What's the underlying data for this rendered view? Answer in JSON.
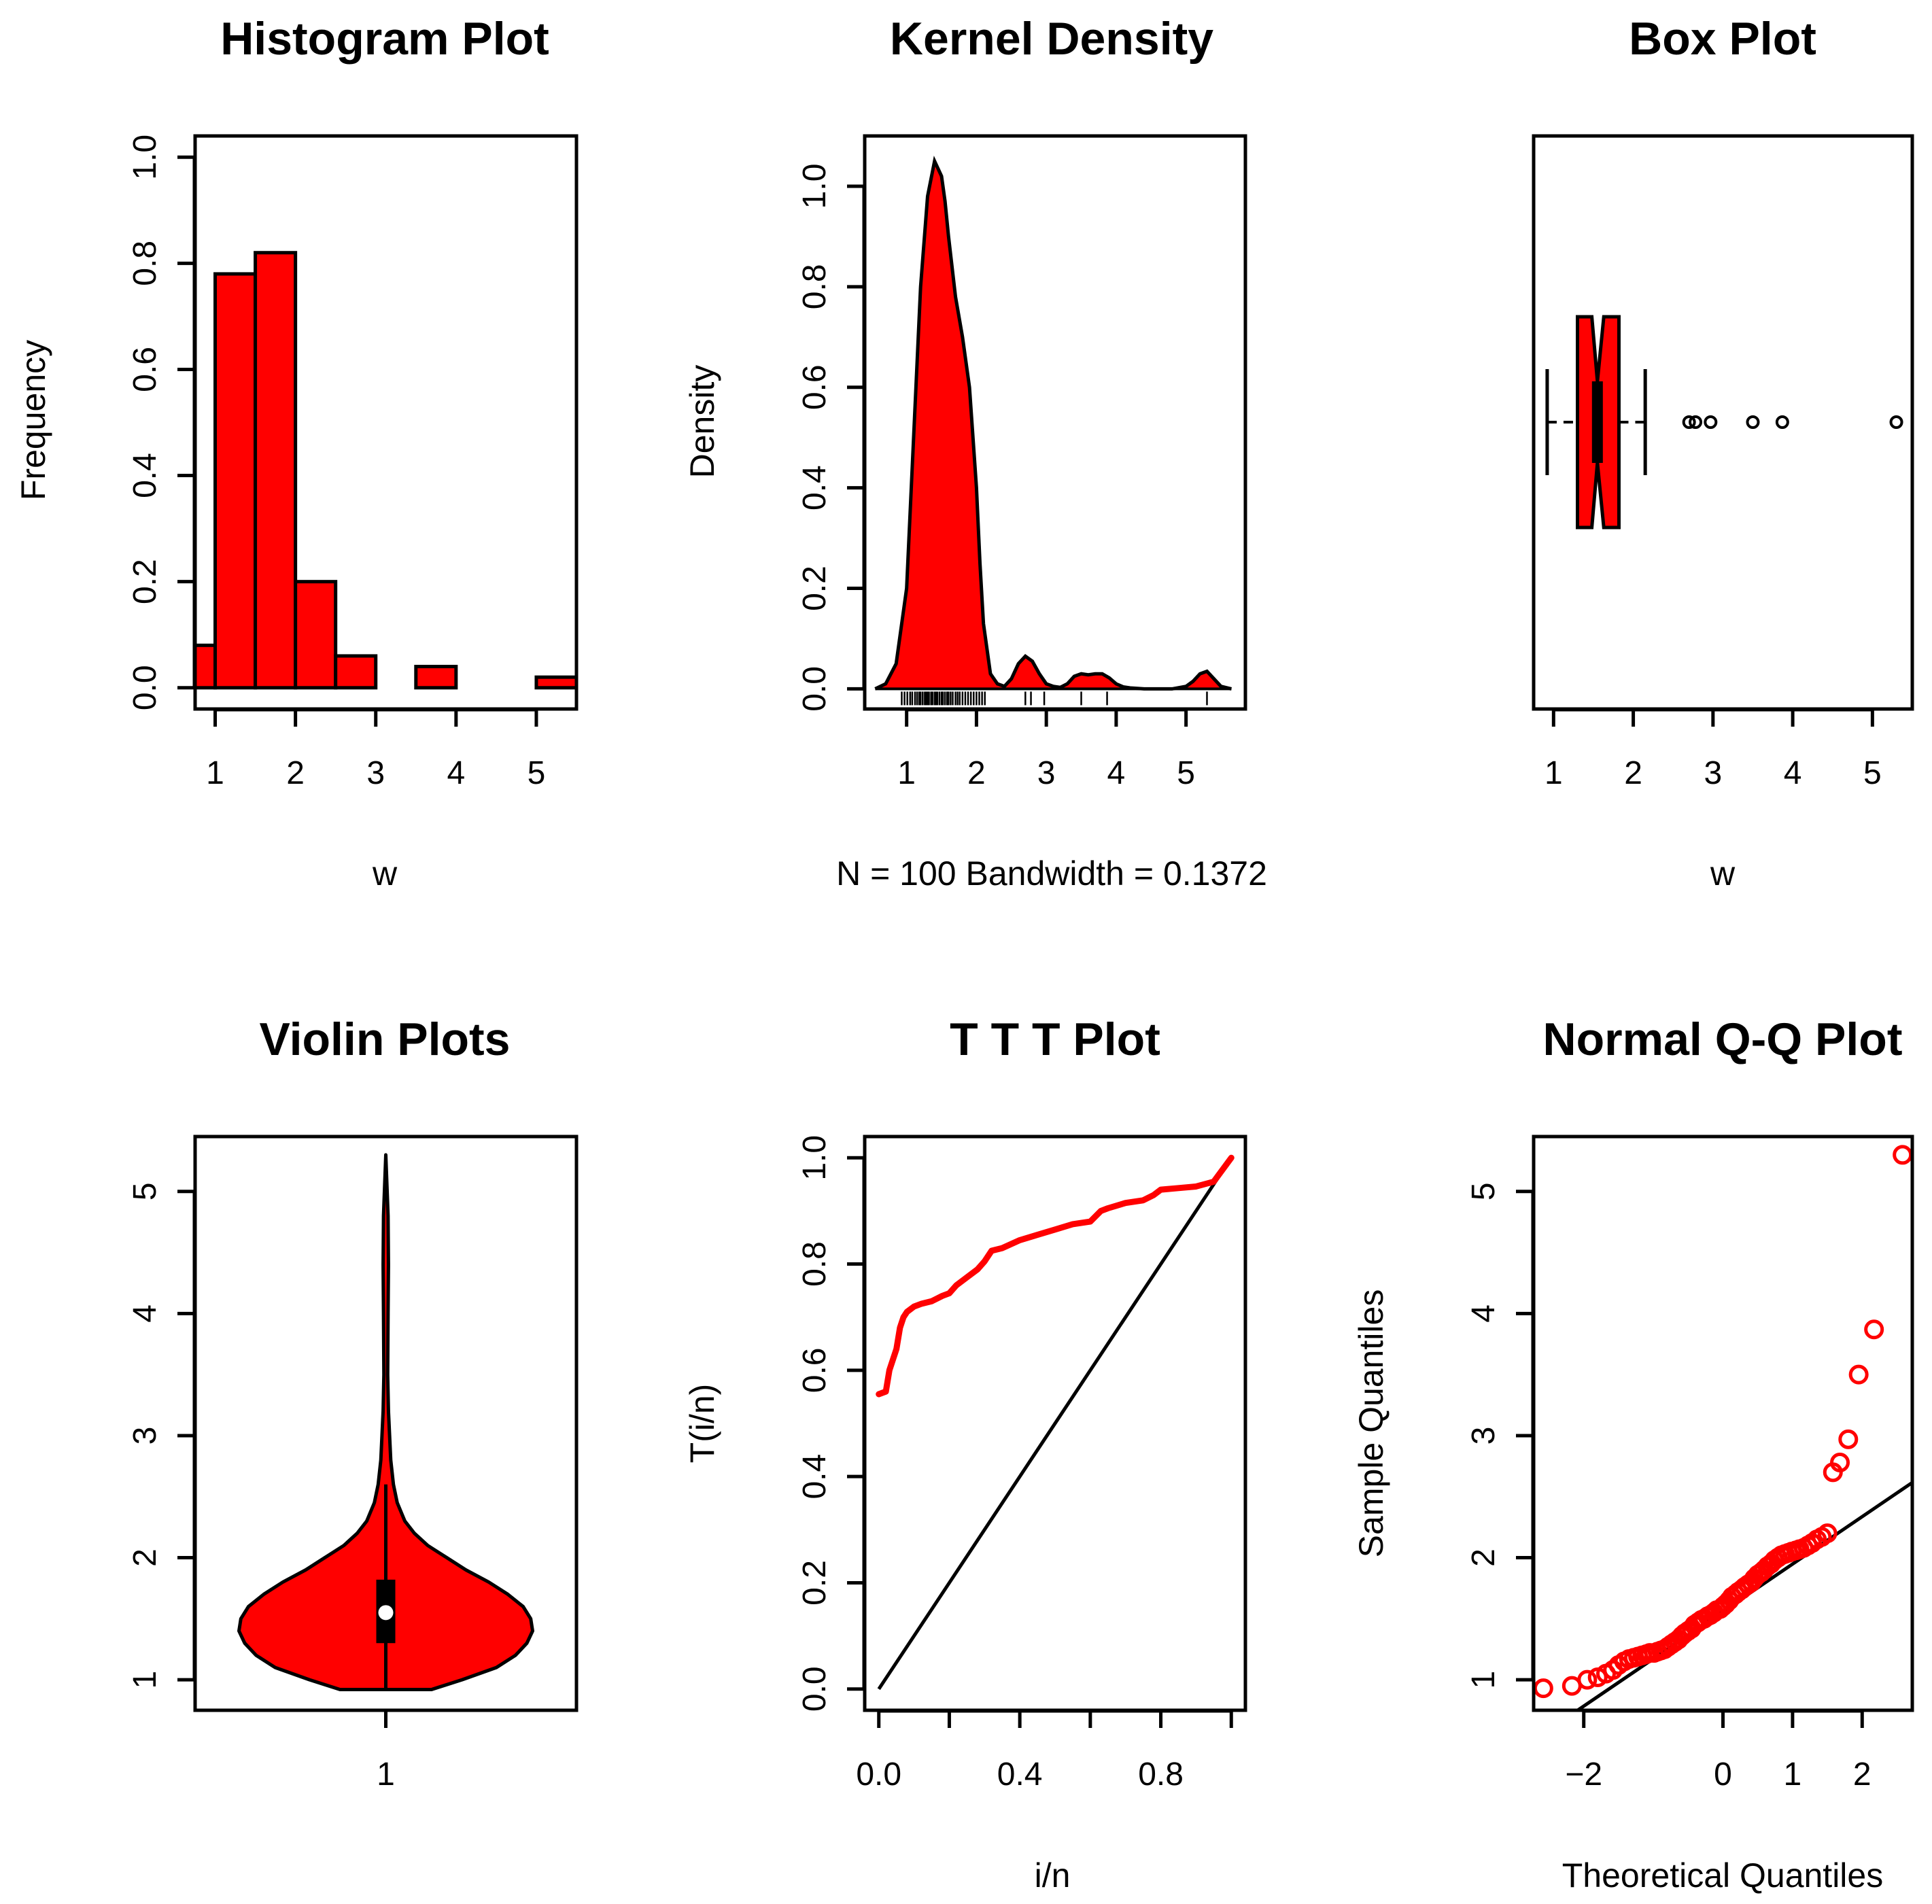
{
  "colors": {
    "fill": "#ff0000",
    "line": "#000000",
    "background": "#ffffff"
  },
  "chart_data": [
    {
      "id": "hist",
      "type": "bar",
      "title": "Histogram Plot",
      "xlabel": "w",
      "ylabel": "Frequency",
      "xlim": [
        0.75,
        5.5
      ],
      "ylim": [
        -0.04,
        1.04
      ],
      "xticks": [
        1,
        2,
        3,
        4,
        5
      ],
      "yticks": [
        "0.0",
        "0.2",
        "0.4",
        "0.6",
        "0.8",
        "1.0"
      ],
      "bins": [
        {
          "x0": 0.75,
          "x1": 1.0,
          "value": 0.08
        },
        {
          "x0": 1.0,
          "x1": 1.5,
          "value": 0.78
        },
        {
          "x0": 1.5,
          "x1": 2.0,
          "value": 0.82
        },
        {
          "x0": 2.0,
          "x1": 2.5,
          "value": 0.2
        },
        {
          "x0": 2.5,
          "x1": 3.0,
          "value": 0.06
        },
        {
          "x0": 3.0,
          "x1": 3.5,
          "value": 0.0
        },
        {
          "x0": 3.5,
          "x1": 4.0,
          "value": 0.04
        },
        {
          "x0": 4.0,
          "x1": 4.5,
          "value": 0.0
        },
        {
          "x0": 4.5,
          "x1": 5.0,
          "value": 0.0
        },
        {
          "x0": 5.0,
          "x1": 5.5,
          "value": 0.02
        }
      ]
    },
    {
      "id": "kde",
      "type": "area",
      "title": "Kernel Density",
      "xlabel": "N = 100   Bandwidth = 0.1372",
      "ylabel": "Density",
      "xlim": [
        0.4,
        5.85
      ],
      "ylim": [
        -0.04,
        1.1
      ],
      "xticks": [
        1,
        2,
        3,
        4,
        5
      ],
      "yticks": [
        "0.0",
        "0.2",
        "0.4",
        "0.6",
        "0.8",
        "1.0"
      ],
      "curve": {
        "x": [
          0.55,
          0.7,
          0.85,
          1.0,
          1.1,
          1.2,
          1.3,
          1.4,
          1.5,
          1.55,
          1.6,
          1.7,
          1.8,
          1.9,
          2.0,
          2.05,
          2.1,
          2.2,
          2.3,
          2.4,
          2.5,
          2.6,
          2.7,
          2.8,
          2.9,
          3.0,
          3.1,
          3.2,
          3.3,
          3.4,
          3.5,
          3.6,
          3.7,
          3.8,
          3.9,
          4.0,
          4.1,
          4.2,
          4.4,
          4.6,
          4.8,
          5.0,
          5.1,
          5.2,
          5.3,
          5.4,
          5.5,
          5.65
        ],
        "y": [
          0.0,
          0.01,
          0.05,
          0.2,
          0.5,
          0.8,
          0.98,
          1.05,
          1.02,
          0.97,
          0.9,
          0.78,
          0.7,
          0.6,
          0.4,
          0.25,
          0.13,
          0.03,
          0.01,
          0.005,
          0.02,
          0.05,
          0.065,
          0.055,
          0.03,
          0.01,
          0.005,
          0.003,
          0.01,
          0.025,
          0.03,
          0.028,
          0.03,
          0.03,
          0.022,
          0.01,
          0.004,
          0.002,
          0.0,
          0.0,
          0.0,
          0.005,
          0.015,
          0.03,
          0.035,
          0.02,
          0.005,
          0.0
        ]
      },
      "rug": [
        0.93,
        0.97,
        1.01,
        1.05,
        1.08,
        1.12,
        1.15,
        1.18,
        1.2,
        1.23,
        1.26,
        1.28,
        1.3,
        1.32,
        1.35,
        1.37,
        1.4,
        1.42,
        1.44,
        1.47,
        1.5,
        1.52,
        1.55,
        1.58,
        1.6,
        1.63,
        1.66,
        1.7,
        1.73,
        1.76,
        1.8,
        1.84,
        1.88,
        1.92,
        1.96,
        2.0,
        2.04,
        2.08,
        2.12,
        2.7,
        2.78,
        2.97,
        3.5,
        3.87,
        5.3
      ]
    },
    {
      "id": "box",
      "type": "box",
      "title": "Box Plot",
      "xlabel": "w",
      "xlim": [
        0.75,
        5.5
      ],
      "xticks": [
        1,
        2,
        3,
        4,
        5
      ],
      "whisker_low": 0.92,
      "q1": 1.3,
      "median": 1.55,
      "q3": 1.82,
      "whisker_high": 2.15,
      "notch": [
        1.48,
        1.63
      ],
      "outliers": [
        2.7,
        2.78,
        2.97,
        3.5,
        3.87,
        5.3
      ]
    },
    {
      "id": "violin",
      "type": "violin",
      "title": "Violin Plots",
      "xlabel": "",
      "xtick_label": "1",
      "xlim": [
        0.5,
        1.5
      ],
      "ylim": [
        0.75,
        5.45
      ],
      "yticks": [
        1,
        2,
        3,
        4,
        5
      ],
      "profile": {
        "y": [
          0.92,
          1.0,
          1.1,
          1.2,
          1.3,
          1.4,
          1.5,
          1.6,
          1.7,
          1.8,
          1.9,
          2.0,
          2.1,
          2.2,
          2.3,
          2.45,
          2.6,
          2.8,
          3.0,
          3.2,
          3.5,
          4.0,
          4.4,
          4.8,
          5.3
        ],
        "half_width": [
          0.12,
          0.2,
          0.29,
          0.34,
          0.37,
          0.385,
          0.38,
          0.36,
          0.32,
          0.27,
          0.21,
          0.16,
          0.11,
          0.075,
          0.05,
          0.03,
          0.02,
          0.013,
          0.01,
          0.007,
          0.005,
          0.006,
          0.007,
          0.006,
          0.0
        ]
      },
      "whisker_low": 0.92,
      "q1": 1.3,
      "median": 1.55,
      "q3": 1.82,
      "whisker_high": 2.6
    },
    {
      "id": "ttt",
      "type": "line",
      "title": "T T T Plot",
      "xlabel": "i/n",
      "ylabel": "T(i/n)",
      "xlim": [
        -0.04,
        1.04
      ],
      "ylim": [
        -0.04,
        1.04
      ],
      "xticks": [
        "0.0",
        "0.4",
        "0.8"
      ],
      "yticks": [
        "0.0",
        "0.2",
        "0.4",
        "0.6",
        "0.8",
        "1.0"
      ],
      "series": [
        {
          "name": "TTT",
          "x": [
            0.0,
            0.02,
            0.03,
            0.05,
            0.06,
            0.07,
            0.08,
            0.1,
            0.12,
            0.15,
            0.18,
            0.2,
            0.22,
            0.25,
            0.28,
            0.3,
            0.32,
            0.35,
            0.4,
            0.45,
            0.5,
            0.55,
            0.6,
            0.63,
            0.65,
            0.7,
            0.75,
            0.78,
            0.8,
            0.85,
            0.9,
            0.95,
            1.0
          ],
          "y": [
            0.555,
            0.56,
            0.6,
            0.64,
            0.68,
            0.7,
            0.71,
            0.72,
            0.725,
            0.73,
            0.74,
            0.745,
            0.76,
            0.775,
            0.79,
            0.805,
            0.825,
            0.83,
            0.845,
            0.855,
            0.865,
            0.875,
            0.88,
            0.9,
            0.905,
            0.915,
            0.92,
            0.93,
            0.94,
            0.943,
            0.946,
            0.955,
            1.0
          ]
        },
        {
          "name": "diagonal",
          "x": [
            0.0,
            1.0
          ],
          "y": [
            0.0,
            1.0
          ]
        }
      ]
    },
    {
      "id": "qq",
      "type": "scatter",
      "title": "Normal Q-Q Plot",
      "xlabel": "Theoretical Quantiles",
      "ylabel": "Sample Quantiles",
      "xlim": [
        -2.72,
        2.72
      ],
      "ylim": [
        0.75,
        5.45
      ],
      "xticks": [
        -2,
        0,
        1,
        2
      ],
      "xtick_labels": [
        "−2",
        "0",
        "1",
        "2"
      ],
      "yticks": [
        1,
        2,
        3,
        4,
        5
      ],
      "points": {
        "x": [
          -2.58,
          -2.17,
          -1.95,
          -1.8,
          -1.68,
          -1.58,
          -1.5,
          -1.42,
          -1.35,
          -1.28,
          -1.22,
          -1.16,
          -1.1,
          -1.05,
          -0.99,
          -0.94,
          -0.89,
          -0.84,
          -0.79,
          -0.74,
          -0.69,
          -0.64,
          -0.59,
          -0.55,
          -0.5,
          -0.45,
          -0.41,
          -0.36,
          -0.31,
          -0.27,
          -0.22,
          -0.18,
          -0.13,
          -0.09,
          -0.04,
          0.0,
          0.04,
          0.09,
          0.13,
          0.18,
          0.22,
          0.27,
          0.31,
          0.36,
          0.41,
          0.45,
          0.5,
          0.55,
          0.59,
          0.64,
          0.69,
          0.74,
          0.79,
          0.84,
          0.89,
          0.94,
          0.99,
          1.05,
          1.1,
          1.16,
          1.22,
          1.28,
          1.35,
          1.42,
          1.5,
          1.58,
          1.68,
          1.8,
          1.95,
          2.17,
          2.58
        ],
        "y": [
          0.93,
          0.95,
          1.0,
          1.02,
          1.05,
          1.08,
          1.12,
          1.15,
          1.17,
          1.18,
          1.19,
          1.2,
          1.21,
          1.22,
          1.22,
          1.23,
          1.24,
          1.25,
          1.27,
          1.29,
          1.31,
          1.33,
          1.36,
          1.38,
          1.4,
          1.42,
          1.45,
          1.47,
          1.49,
          1.5,
          1.52,
          1.53,
          1.55,
          1.57,
          1.58,
          1.6,
          1.62,
          1.65,
          1.68,
          1.7,
          1.72,
          1.74,
          1.76,
          1.78,
          1.8,
          1.83,
          1.86,
          1.88,
          1.9,
          1.93,
          1.95,
          1.98,
          2.0,
          2.02,
          2.03,
          2.04,
          2.05,
          2.06,
          2.07,
          2.08,
          2.1,
          2.12,
          2.15,
          2.17,
          2.2,
          2.7,
          2.78,
          2.97,
          3.5,
          3.87,
          5.3
        ]
      },
      "qqline": {
        "x": [
          -2.72,
          2.72
        ],
        "intercept": 1.56,
        "slope": 0.388
      }
    }
  ]
}
